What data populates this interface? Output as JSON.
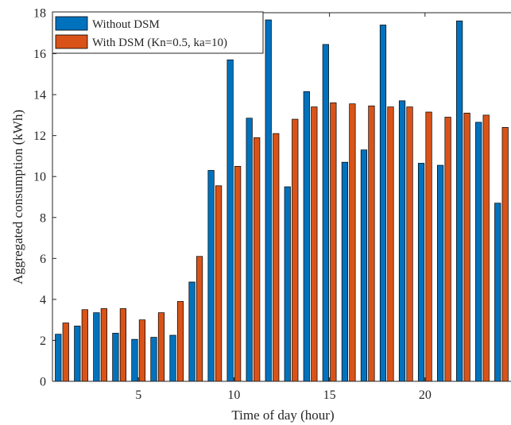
{
  "chart_data": {
    "type": "bar",
    "title": "",
    "xlabel": "Time of day (hour)",
    "ylabel": "Aggregated consumption (kWh)",
    "x": [
      1,
      2,
      3,
      4,
      5,
      6,
      7,
      8,
      9,
      10,
      11,
      12,
      13,
      14,
      15,
      16,
      17,
      18,
      19,
      20,
      21,
      22,
      23,
      24
    ],
    "xlim": [
      0.5,
      24.5
    ],
    "ylim": [
      0,
      18
    ],
    "xticks": [
      5,
      10,
      15,
      20
    ],
    "yticks": [
      0,
      2,
      4,
      6,
      8,
      10,
      12,
      14,
      16,
      18
    ],
    "grid": false,
    "legend_position": "top-left",
    "series": [
      {
        "name": "Without DSM",
        "color": "#0072bd",
        "values": [
          2.3,
          2.7,
          3.35,
          2.35,
          2.05,
          2.15,
          2.25,
          4.85,
          10.3,
          15.7,
          12.85,
          17.65,
          9.5,
          14.15,
          16.45,
          10.7,
          11.3,
          17.4,
          13.7,
          10.65,
          10.55,
          17.6,
          12.65,
          8.7
        ]
      },
      {
        "name": "With DSM (Kn=0.5, ka=10)",
        "color": "#d95319",
        "values": [
          2.85,
          3.5,
          3.55,
          3.55,
          3.0,
          3.35,
          3.9,
          6.1,
          9.55,
          10.5,
          11.9,
          12.1,
          12.8,
          13.4,
          13.6,
          13.55,
          13.45,
          13.4,
          13.4,
          13.15,
          12.9,
          13.1,
          13.0,
          12.4
        ]
      }
    ]
  }
}
